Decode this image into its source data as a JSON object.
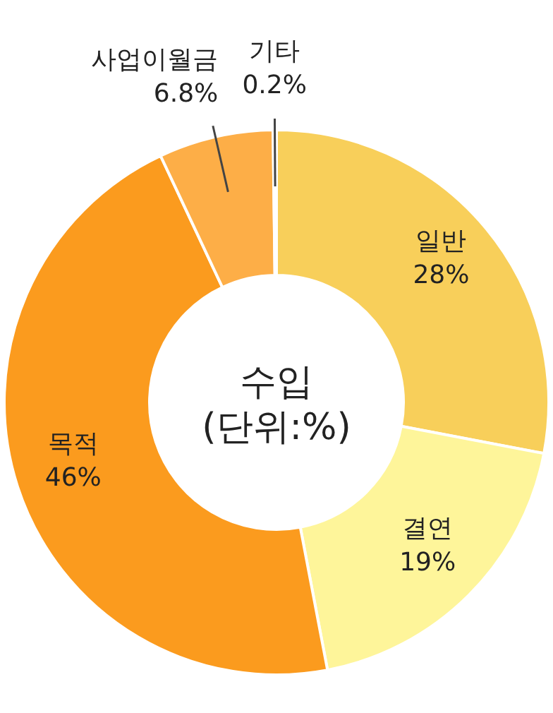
{
  "chart_data": {
    "type": "donut",
    "title": "수입",
    "subtitle": "(단위:%)",
    "categories": [
      "일반",
      "결연",
      "목적",
      "사업이월금",
      "기타"
    ],
    "values": [
      28,
      19,
      46,
      6.8,
      0.2
    ],
    "value_labels": [
      "28%",
      "19%",
      "46%",
      "6.8%",
      "0.2%"
    ],
    "colors": [
      "#f8cf5a",
      "#fef59a",
      "#fb9b1e",
      "#fdae47",
      "#f2ef2a"
    ]
  }
}
